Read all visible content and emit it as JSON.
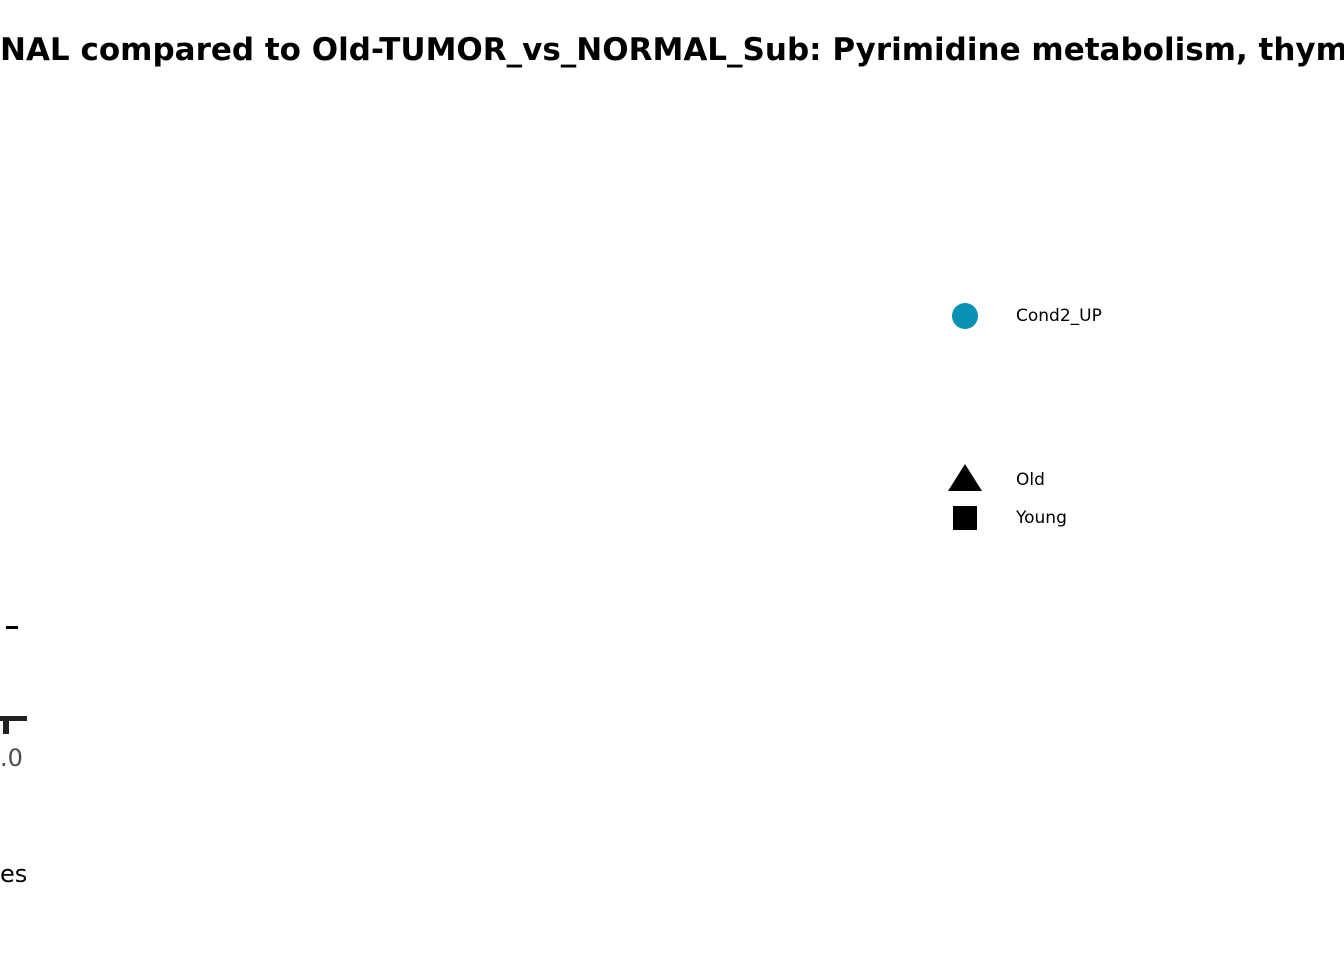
{
  "chart_data": {
    "type": "scatter",
    "title": "NAL compared to Old-TUMOR_vs_NORMAL_Sub: Pyrimidine metabolism, thym",
    "x_tick_labels": [
      ".0"
    ],
    "xlabel": "es",
    "legend": {
      "placement": "right",
      "color_entries": [
        {
          "label": "Cond2_UP",
          "color": "#0891b2"
        }
      ],
      "shape_entries": [
        {
          "label": "Old",
          "shape": "triangle"
        },
        {
          "label": "Young",
          "shape": "square"
        }
      ]
    },
    "series": []
  }
}
